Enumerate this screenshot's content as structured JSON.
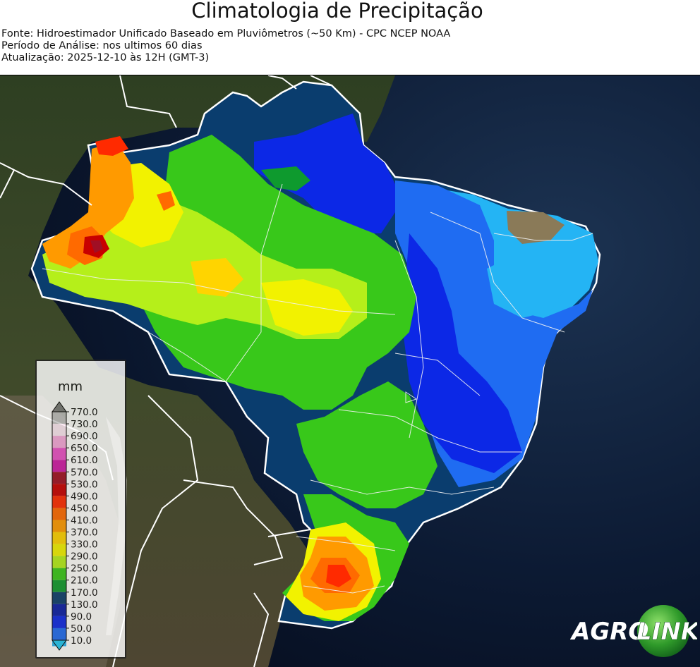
{
  "header": {
    "title": "Climatologia de Precipitação",
    "source": "Fonte: Hidroestimador Unificado Baseado em Pluviômetros (~50 Km) - CPC NCEP NOAA",
    "period": "Período de Análise: nos ultimos 60 dias",
    "update": "Atualização: 2025-12-10 às 12H (GMT-3)"
  },
  "legend": {
    "unit": "mm",
    "levels": [
      "770.0",
      "730.0",
      "690.0",
      "650.0",
      "610.0",
      "570.0",
      "530.0",
      "490.0",
      "450.0",
      "410.0",
      "370.0",
      "330.0",
      "290.0",
      "250.0",
      "210.0",
      "170.0",
      "130.0",
      "90.0",
      "50.0",
      "10.0"
    ],
    "colors": {
      "top": "#7a7a7a",
      "bands": [
        "#bdbdbd",
        "#fce8f4",
        "#f6a8dc",
        "#ea50c8",
        "#d01aa8",
        "#a00f24",
        "#c80000",
        "#ff2a00",
        "#ff6a00",
        "#ff9a00",
        "#ffd400",
        "#f2f200",
        "#b5ef1a",
        "#38c81a",
        "#0e9a2e",
        "#0a3d6e",
        "#0a1ea8",
        "#0c28e6",
        "#1f6cf2",
        "#24b4f4"
      ],
      "bottom": "#1ec8f4"
    }
  },
  "logo": {
    "text_agro": "AGRO",
    "text_link": "LINK"
  }
}
